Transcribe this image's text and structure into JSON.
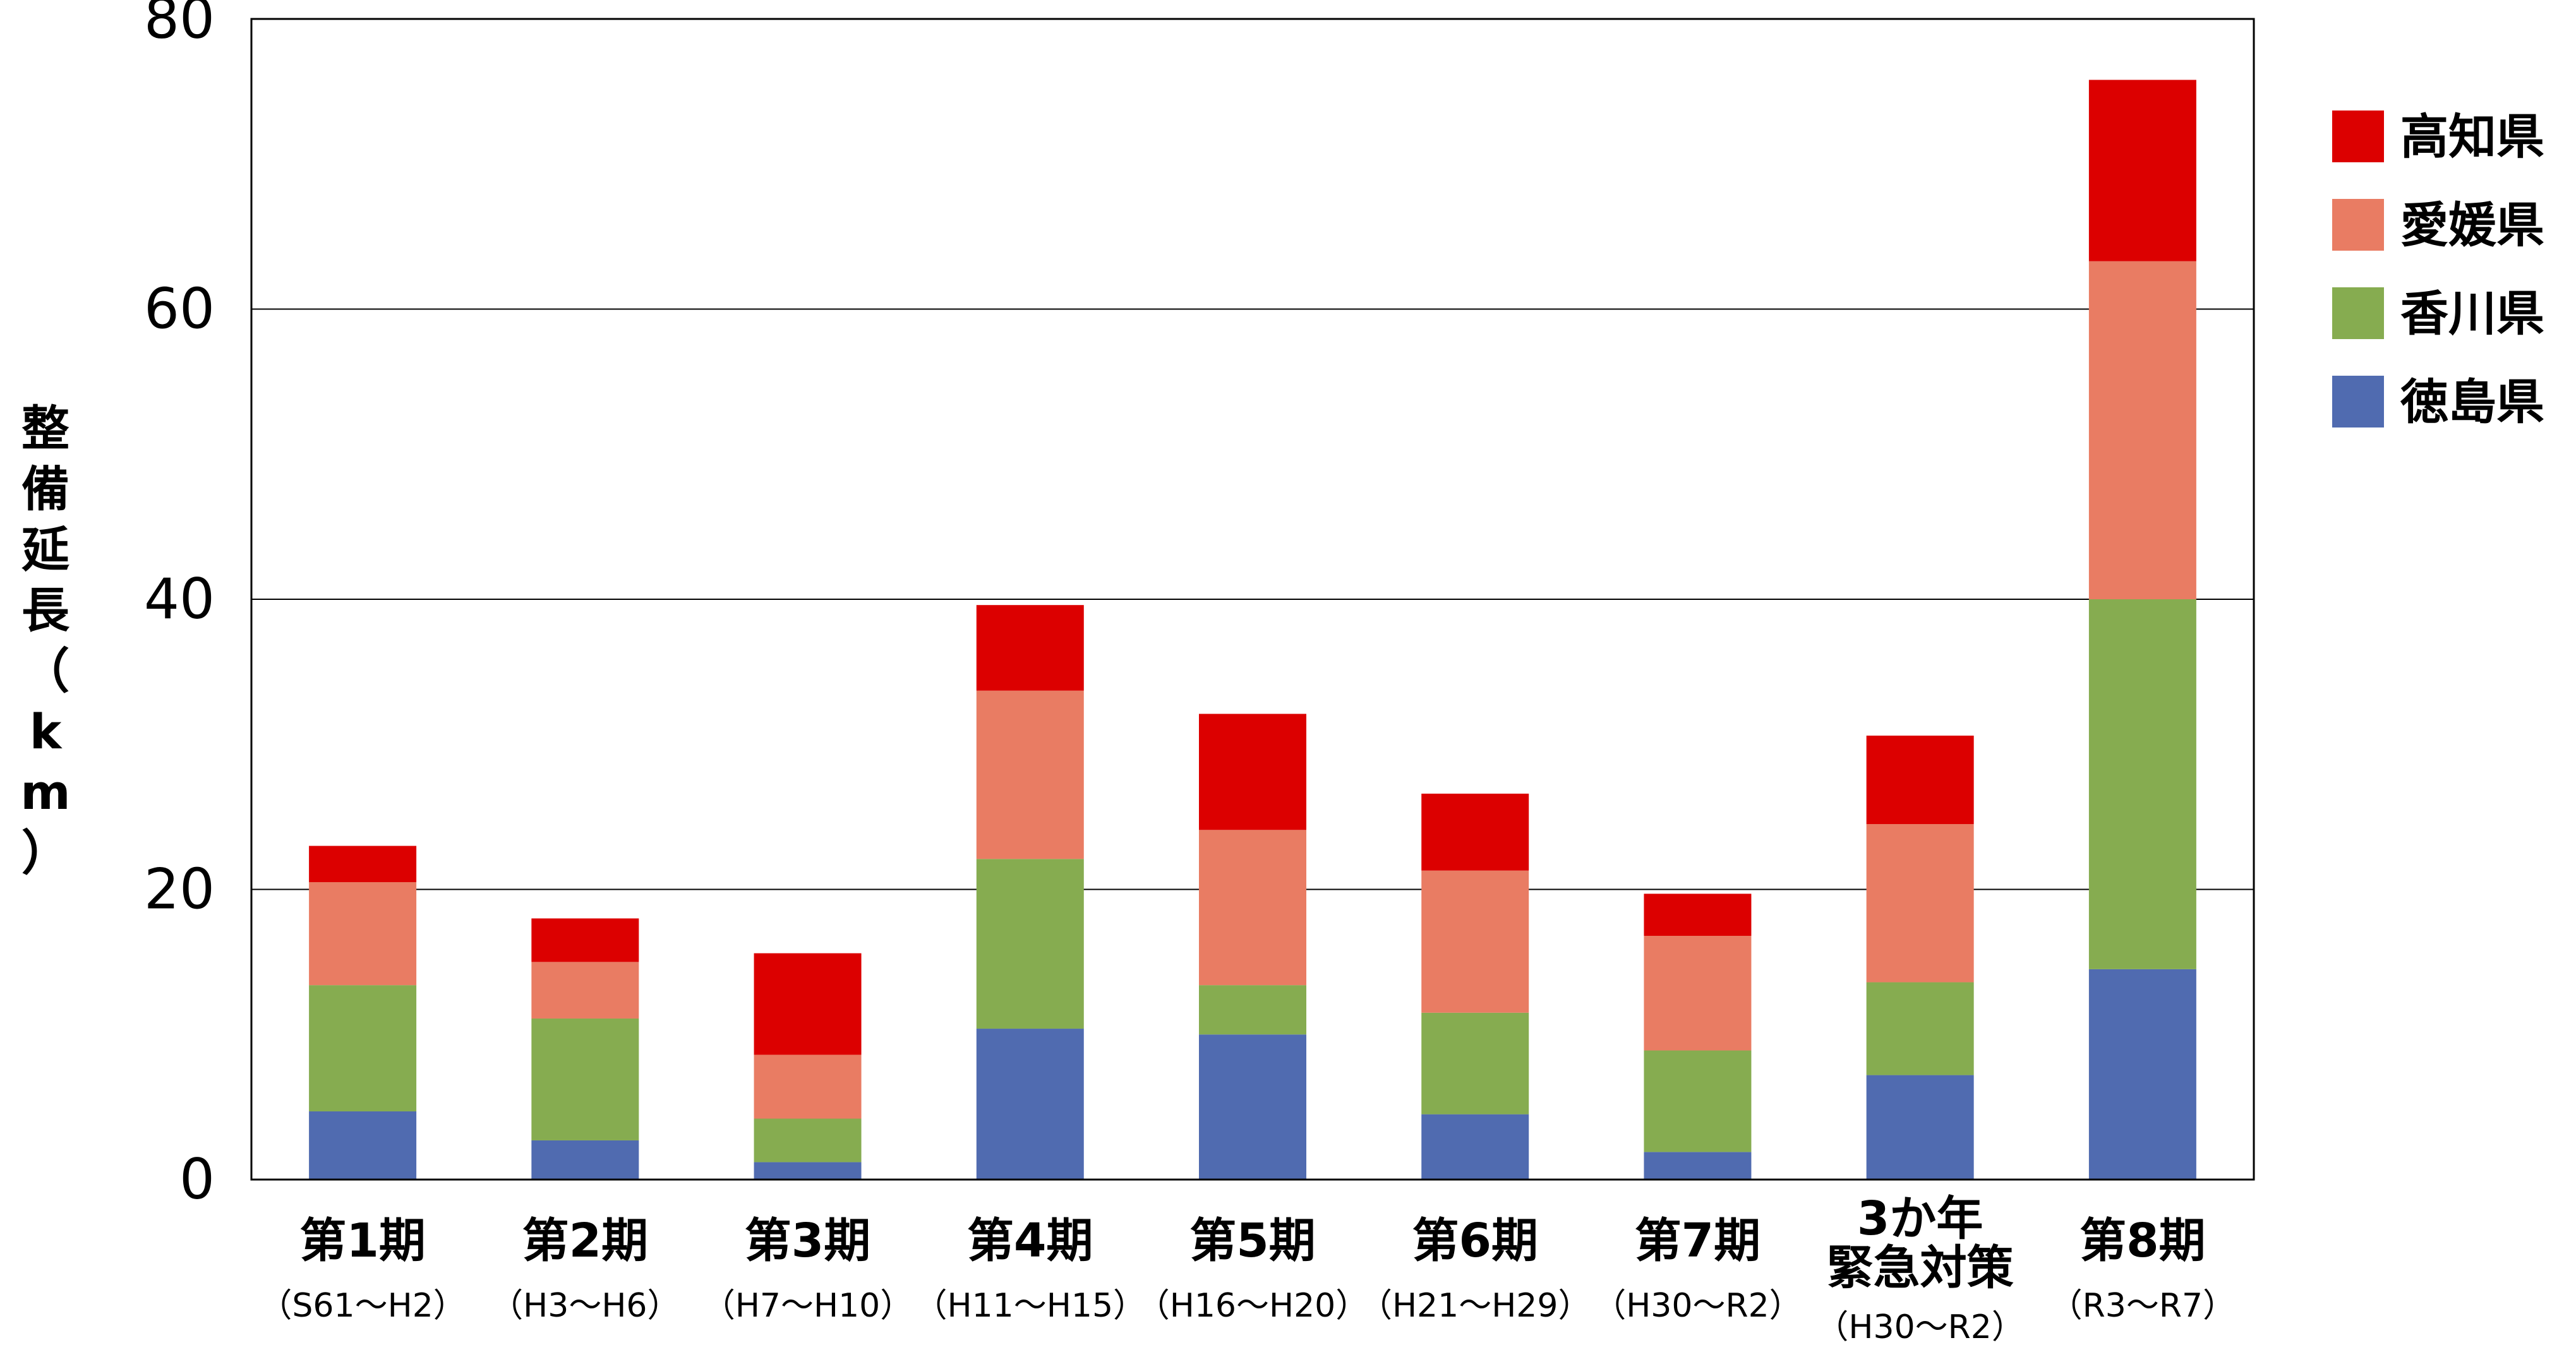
{
  "chart_data": {
    "type": "bar",
    "stacked": true,
    "ylabel_chars": [
      "整",
      "備",
      "延",
      "長",
      "（",
      "k",
      "m",
      "）"
    ],
    "ylim": [
      0,
      80
    ],
    "yticks": [
      "0",
      "20",
      "40",
      "60",
      "80"
    ],
    "grid": true,
    "legend_position": "top-right",
    "categories": [
      {
        "lines": [
          "第1期"
        ],
        "sub": "（S61～H2）"
      },
      {
        "lines": [
          "第2期"
        ],
        "sub": "（H3～H6）"
      },
      {
        "lines": [
          "第3期"
        ],
        "sub": "（H7～H10）"
      },
      {
        "lines": [
          "第4期"
        ],
        "sub": "（H11～H15）"
      },
      {
        "lines": [
          "第5期"
        ],
        "sub": "（H16～H20）"
      },
      {
        "lines": [
          "第6期"
        ],
        "sub": "（H21～H29）"
      },
      {
        "lines": [
          "第7期"
        ],
        "sub": "（H30～R2）"
      },
      {
        "lines": [
          "3か年",
          "緊急対策"
        ],
        "sub": "（H30～R2）"
      },
      {
        "lines": [
          "第8期"
        ],
        "sub": "（R3～R7）"
      }
    ],
    "series": [
      {
        "name": "徳島県",
        "color": "#506bb0",
        "values": [
          4.7,
          2.7,
          1.2,
          10.4,
          10.0,
          4.5,
          1.9,
          7.2,
          14.5
        ]
      },
      {
        "name": "香川県",
        "color": "#86ac50",
        "values": [
          8.7,
          8.4,
          3.0,
          11.7,
          3.4,
          7.0,
          7.0,
          6.4,
          25.5
        ]
      },
      {
        "name": "愛媛県",
        "color": "#e97c63",
        "values": [
          7.1,
          3.9,
          4.4,
          11.6,
          10.7,
          9.8,
          7.9,
          10.9,
          23.3
        ]
      },
      {
        "name": "高知県",
        "color": "#dc0000",
        "values": [
          2.5,
          3.0,
          7.0,
          5.9,
          8.0,
          5.3,
          2.9,
          6.1,
          12.5
        ]
      }
    ]
  }
}
